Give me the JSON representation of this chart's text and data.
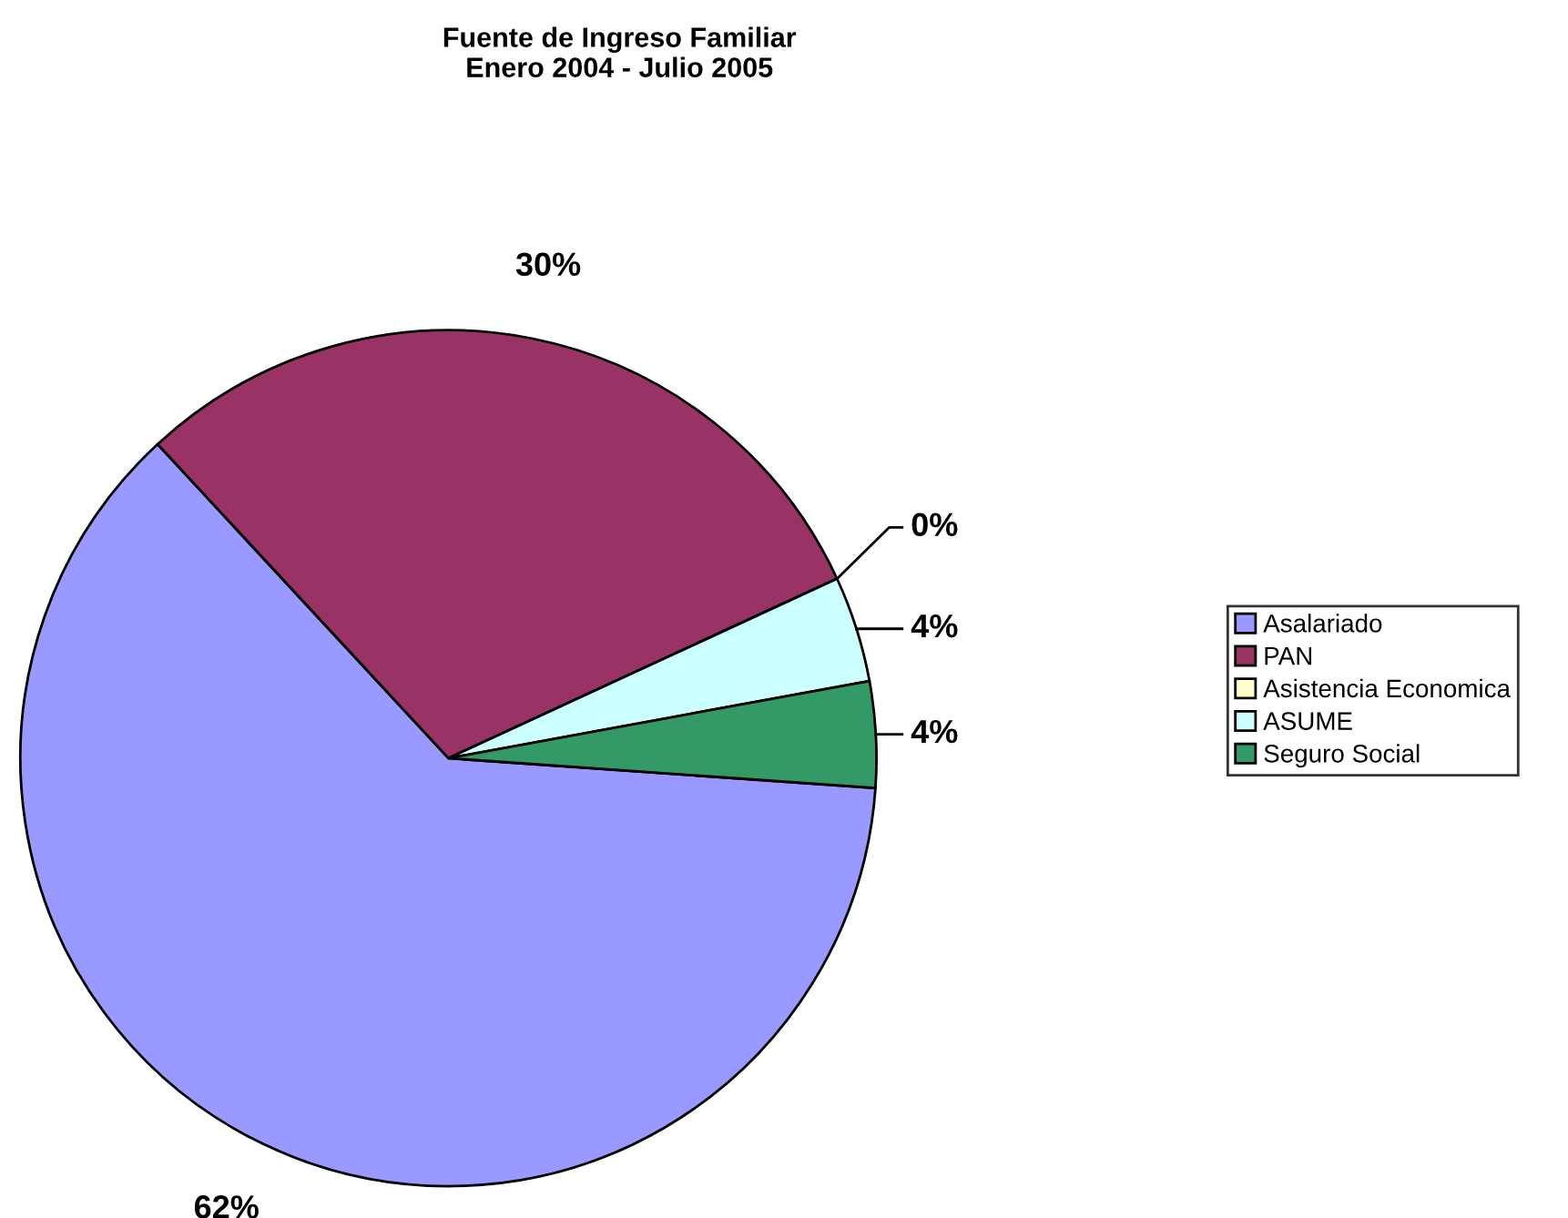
{
  "chart_data": {
    "type": "pie",
    "title": "Fuente de Ingreso Familiar\nEnero 2004 - Julio 2005",
    "categories": [
      "Asalariado",
      "PAN",
      "Asistencia Economica",
      "ASUME",
      "Seguro Social"
    ],
    "values": [
      62,
      30,
      0,
      4,
      4
    ],
    "colors": [
      "#9999ff",
      "#993366",
      "#ffffcc",
      "#ccffff",
      "#339966"
    ],
    "value_labels": [
      "62%",
      "30%",
      "0%",
      "4%",
      "4%"
    ],
    "legend": "right"
  }
}
